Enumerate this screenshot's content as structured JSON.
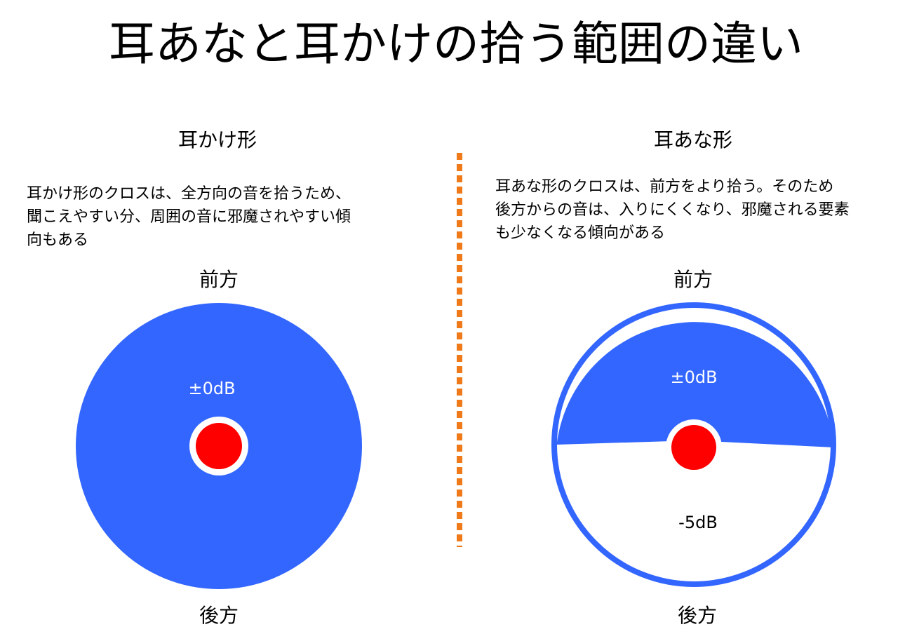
{
  "title": "耳あなと耳かけの拾う範囲の違い",
  "left_panel": {
    "heading": "耳かけ形",
    "description_lines": [
      "耳かけ形のクロスは、全方向の音を拾うため、",
      "聞こえやすい分、周囲の音に邪魔されやすい傾",
      "向もある"
    ],
    "front_label": "前方",
    "back_label": "後方",
    "front_level": "±0dB"
  },
  "right_panel": {
    "heading": "耳あな形",
    "description_lines": [
      "耳あな形のクロスは、前方をより拾う。そのため",
      "後方からの音は、入りにくくなり、邪魔される要素",
      "も少なくなる傾向がある"
    ],
    "front_label": "前方",
    "back_label": "後方",
    "front_level": "±0dB",
    "back_level": "-5dB"
  },
  "colors": {
    "pickup_area": "#3366ff",
    "microphone": "#ff0000",
    "divider": "#f07a1a",
    "background": "#ffffff",
    "text": "#000000"
  }
}
